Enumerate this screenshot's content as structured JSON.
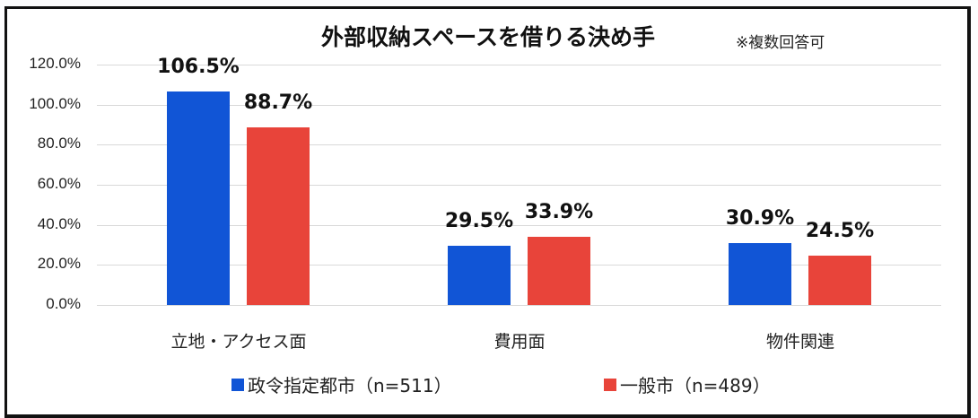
{
  "chart_data": {
    "type": "bar",
    "title": "外部収納スペースを借りる決め手",
    "subtitle": "※複数回答可",
    "xlabel": "",
    "ylabel": "",
    "ylim": [
      0,
      120
    ],
    "yticks": [
      "0.0%",
      "20.0%",
      "40.0%",
      "60.0%",
      "80.0%",
      "100.0%",
      "120.0%"
    ],
    "grid": true,
    "legend_position": "bottom",
    "categories": [
      "立地・アクセス面",
      "費用面",
      "物件関連"
    ],
    "series": [
      {
        "name": "政令指定都市（n=511）",
        "color": "#1155d6",
        "values": [
          106.5,
          29.5,
          30.9
        ],
        "labels": [
          "106.5%",
          "29.5%",
          "30.9%"
        ]
      },
      {
        "name": "一般市（n=489）",
        "color": "#e8443a",
        "values": [
          88.7,
          33.9,
          24.5
        ],
        "labels": [
          "88.7%",
          "33.9%",
          "24.5%"
        ]
      }
    ]
  }
}
